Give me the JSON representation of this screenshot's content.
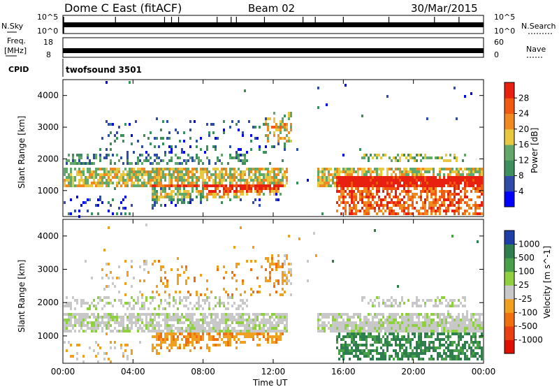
{
  "header": {
    "title": "Dome C East (fitACF)",
    "beam": "Beam 02",
    "date": "30/Mar/2015"
  },
  "strip_labels": {
    "nsky": "N.Sky",
    "nsky_ticks": [
      "10^5",
      "10^0"
    ],
    "nsearch": "N.Search",
    "nsearch_ticks": [
      "10^5",
      "10^0"
    ],
    "freq_line1": "Freq.",
    "freq_line2": "[MHz]",
    "freq_ticks": [
      "18",
      "8"
    ],
    "nave": "Nave",
    "nave_ticks": [
      "60",
      "0"
    ],
    "cpid": "CPID",
    "cpid_value": "twofsound 3501"
  },
  "colors": {
    "power_scale": [
      "#0000ff",
      "#2f4ca8",
      "#3d8f5e",
      "#62a86a",
      "#e8c840",
      "#f08a20",
      "#f05a10",
      "#e82010"
    ],
    "velocity_scale": [
      "#1f3fa8",
      "#2f7f4e",
      "#48a048",
      "#8ed040",
      "#c8c8c8",
      "#f0a020",
      "#f07010",
      "#e84010",
      "#e01000"
    ]
  },
  "chart_data": [
    {
      "type": "heatmap",
      "name": "power",
      "ylabel": "Slant Range [km]",
      "xlabel": "",
      "yticks": [
        "1000",
        "2000",
        "3000",
        "4000"
      ],
      "xticks": [
        "00:00",
        "04:00",
        "08:00",
        "12:00",
        "16:00",
        "20:00",
        "00:00"
      ],
      "ylim": [
        180,
        4500
      ],
      "xlim_hours": [
        0,
        24
      ],
      "colorbar": {
        "label": "Power [dB]",
        "ticks": [
          "4",
          "8",
          "12",
          "16",
          "20",
          "24",
          "28"
        ],
        "range": [
          0,
          32
        ]
      }
    },
    {
      "type": "heatmap",
      "name": "velocity",
      "ylabel": "Slant Range [km]",
      "xlabel": "Time UT",
      "yticks": [
        "1000",
        "2000",
        "3000",
        "4000"
      ],
      "xticks": [
        "00:00",
        "04:00",
        "08:00",
        "12:00",
        "16:00",
        "20:00",
        "00:00"
      ],
      "ylim": [
        180,
        4500
      ],
      "xlim_hours": [
        0,
        24
      ],
      "colorbar": {
        "label": "Velocity [m s^-1]",
        "ticks": [
          "1000",
          "500",
          "100",
          "25",
          "-25",
          "-100",
          "-500",
          "-1000"
        ]
      }
    }
  ]
}
